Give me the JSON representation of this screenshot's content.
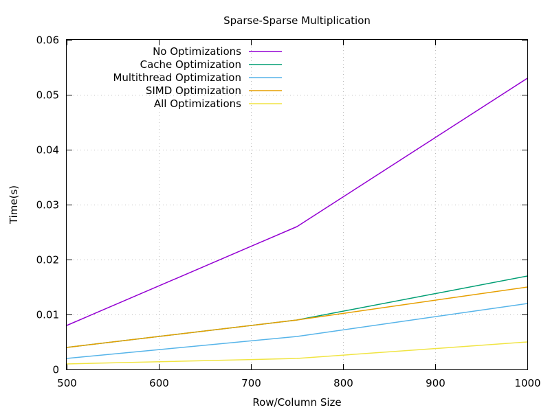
{
  "chart_data": {
    "type": "line",
    "title": "Sparse-Sparse Multiplication",
    "xlabel": "Row/Column Size",
    "ylabel": "Time(s)",
    "xlim": [
      500,
      1000
    ],
    "ylim": [
      0,
      0.06
    ],
    "x_ticks": [
      "500",
      "600",
      "700",
      "800",
      "900",
      "1000"
    ],
    "y_ticks": [
      "0",
      "0.01",
      "0.02",
      "0.03",
      "0.04",
      "0.05",
      "0.06"
    ],
    "grid": true,
    "legend_position": "top-left",
    "x": [
      500,
      750,
      1000
    ],
    "series": [
      {
        "name": "No Optimizations",
        "color": "#9400d3",
        "values": [
          0.008,
          0.026,
          0.053
        ]
      },
      {
        "name": "Cache Optimization",
        "color": "#009e73",
        "values": [
          0.004,
          0.009,
          0.017
        ]
      },
      {
        "name": "Multithread Optimization",
        "color": "#56b4e9",
        "values": [
          0.002,
          0.006,
          0.012
        ]
      },
      {
        "name": "SIMD Optimization",
        "color": "#e69f00",
        "values": [
          0.004,
          0.009,
          0.015
        ]
      },
      {
        "name": "All Optimizations",
        "color": "#f0e442",
        "values": [
          0.001,
          0.002,
          0.005
        ]
      }
    ]
  }
}
